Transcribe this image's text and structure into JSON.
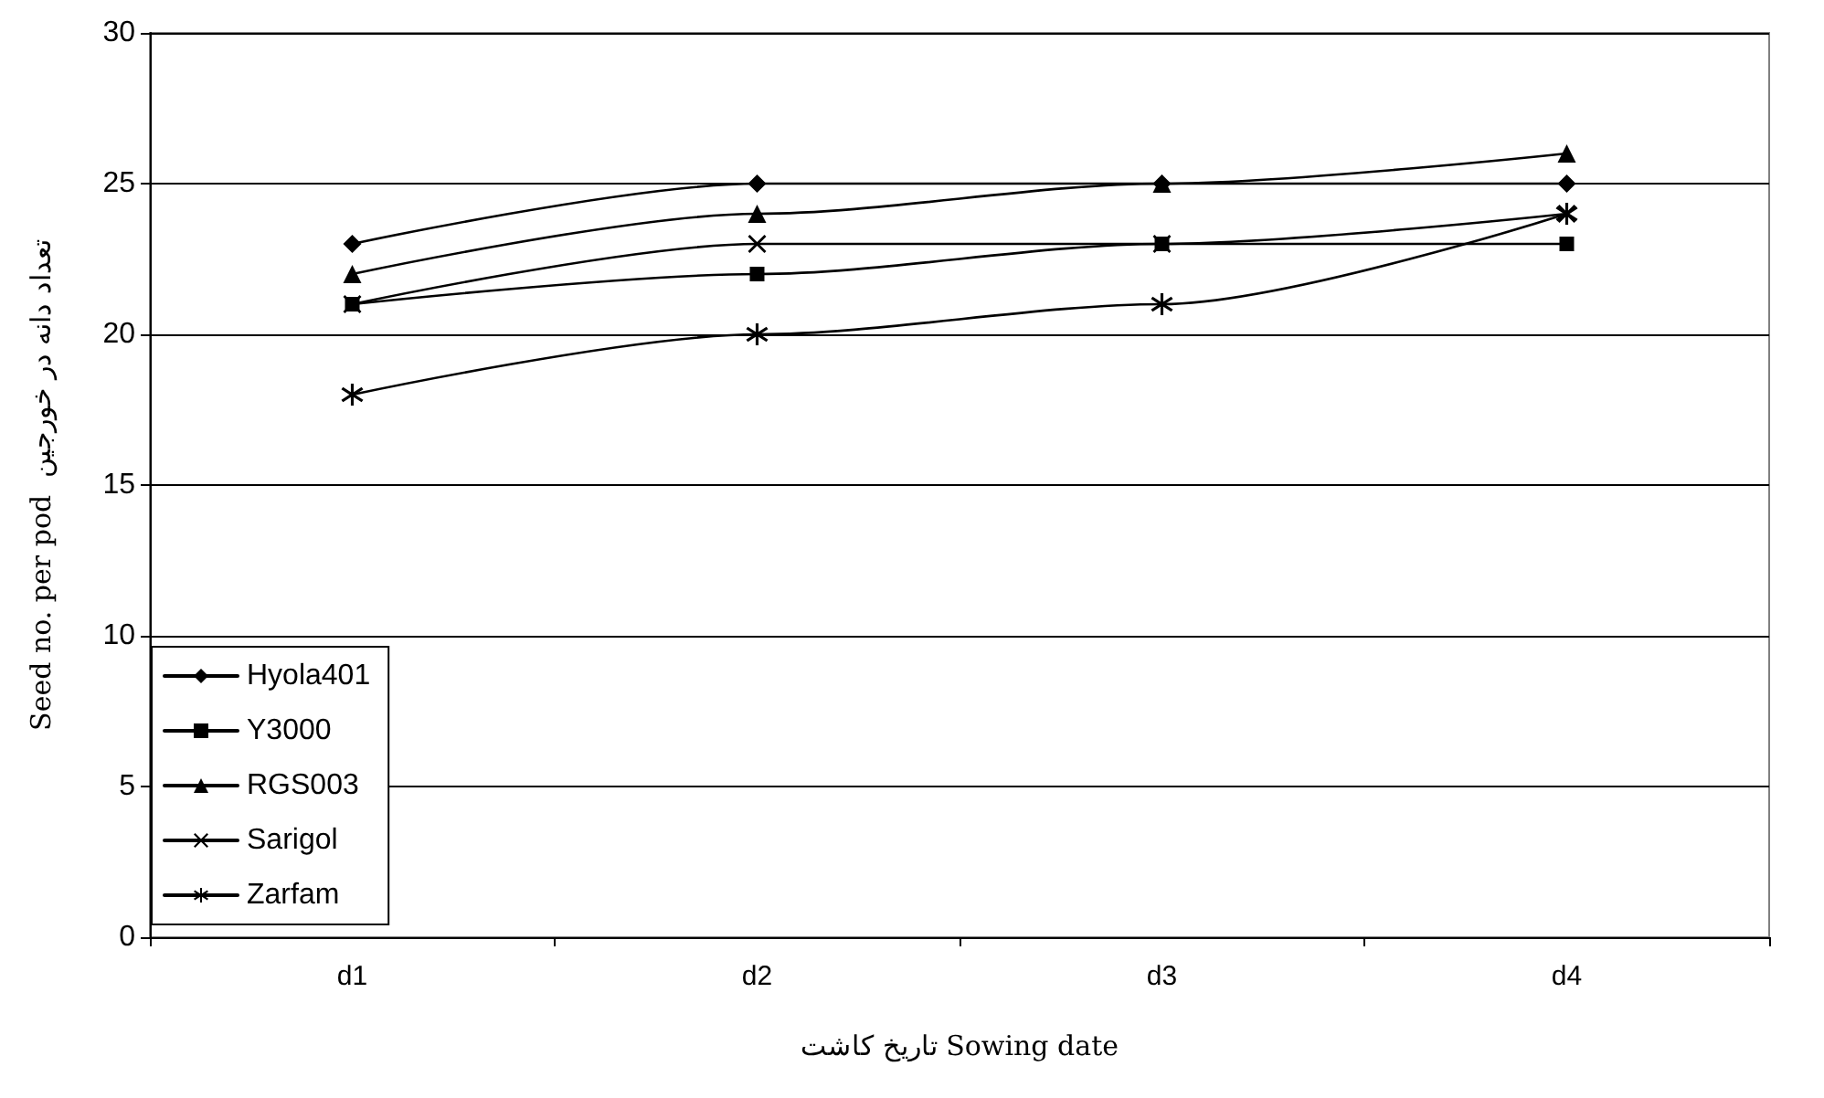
{
  "chart_data": {
    "type": "line",
    "xlabel": "تاریخ کاشت Sowing date",
    "ylabel": "Seed no. per pod  تعداد دانه در خورجین",
    "categories": [
      "d1",
      "d2",
      "d3",
      "d4"
    ],
    "series": [
      {
        "name": "Hyola401",
        "color": "#000000",
        "marker": "diamond",
        "values": [
          23,
          25,
          25,
          25
        ]
      },
      {
        "name": "Y3000",
        "color": "#000000",
        "marker": "square",
        "values": [
          21,
          22,
          23,
          23
        ]
      },
      {
        "name": "RGS003",
        "color": "#000000",
        "marker": "triangle",
        "values": [
          22,
          24,
          25,
          26
        ]
      },
      {
        "name": "Sarigol",
        "color": "#000000",
        "marker": "cross",
        "values": [
          21,
          23,
          23,
          24
        ]
      },
      {
        "name": "Zarfam",
        "color": "#000000",
        "marker": "star",
        "values": [
          18,
          20,
          21,
          24
        ]
      }
    ],
    "ylim": [
      0,
      30
    ],
    "yticks": [
      0,
      5,
      10,
      15,
      20,
      25,
      30
    ],
    "grid": "y",
    "legend": "bottom left",
    "line_style": "solid"
  }
}
